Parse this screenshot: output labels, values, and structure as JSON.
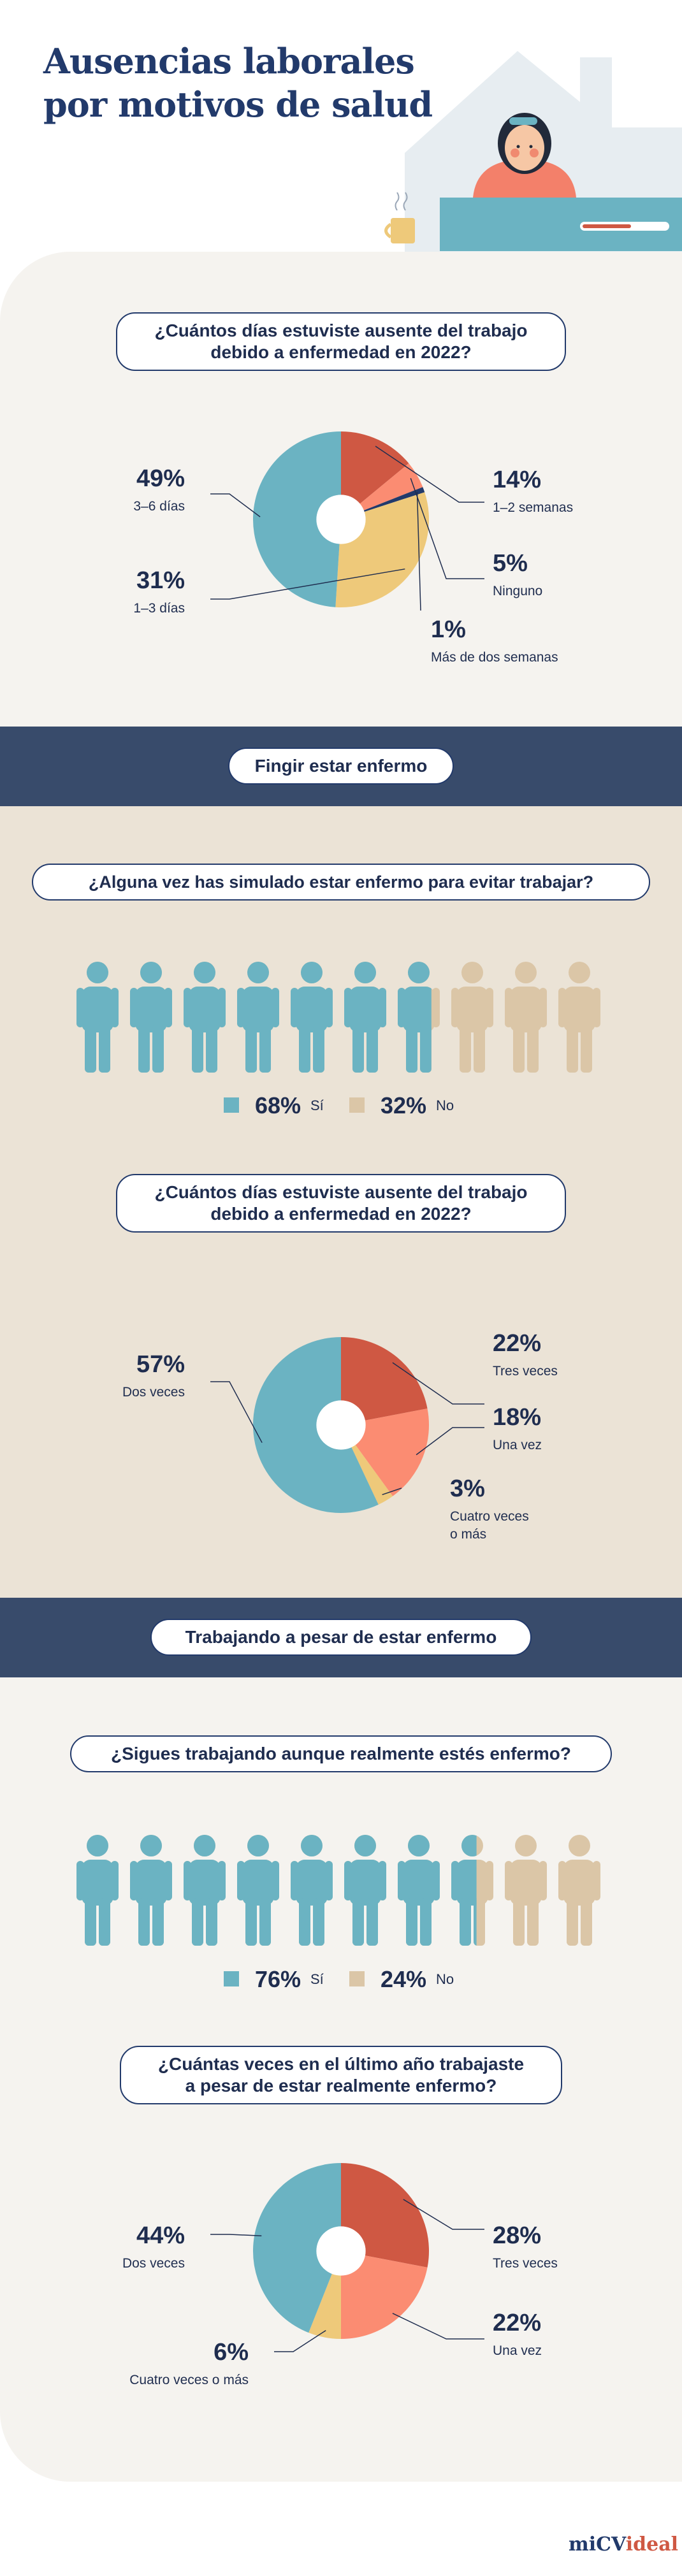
{
  "title_line1": "Ausencias laborales",
  "title_line2": "por motivos de salud",
  "colors": {
    "blue": "#6bb3c2",
    "red": "#cf5843",
    "salmon": "#fb8c72",
    "yellow": "#eec97a",
    "navy": "#223a6b",
    "beige_person": "#dbc6a7"
  },
  "q1": {
    "question_line1": "¿Cuántos días estuviste ausente del trabajo",
    "question_line2": "debido a enfermedad en 2022?"
  },
  "band1": "Fingir estar enfermo",
  "q2": {
    "question": "¿Alguna vez has simulado estar enfermo para evitar trabajar?",
    "yes_value": "68%",
    "yes_label": "Sí",
    "no_value": "32%",
    "no_label": "No",
    "icons": {
      "total": 10,
      "filled": 6.8
    }
  },
  "q3": {
    "question_line1": "¿Cuántos días estuviste ausente del trabajo",
    "question_line2": "debido a enfermedad en 2022?"
  },
  "band2": "Trabajando a pesar de estar enfermo",
  "q4": {
    "question": "¿Sigues trabajando aunque realmente estés enfermo?",
    "yes_value": "76%",
    "yes_label": "Sí",
    "no_value": "24%",
    "no_label": "No",
    "icons": {
      "total": 10,
      "filled": 7.6
    }
  },
  "q5": {
    "question_line1": "¿Cuántas veces en el último año trabajaste",
    "question_line2": "a pesar de estar realmente enfermo?"
  },
  "brand": {
    "part1": "mi",
    "part2": "CV",
    "part3": "ideal"
  },
  "chart_data": [
    {
      "type": "pie",
      "slices": [
        {
          "label": "1–2 semanas",
          "value": 14,
          "pct_text": "14%",
          "color": "red"
        },
        {
          "label": "Ninguno",
          "value": 5,
          "pct_text": "5%",
          "color": "salmon"
        },
        {
          "label": "Más de dos semanas",
          "value": 1,
          "pct_text": "1%",
          "color": "navy"
        },
        {
          "label": "1–3 días",
          "value": 31,
          "pct_text": "31%",
          "color": "yellow"
        },
        {
          "label": "3–6 días",
          "value": 49,
          "pct_text": "49%",
          "color": "blue"
        }
      ]
    },
    {
      "type": "pie",
      "slices": [
        {
          "label": "Tres veces",
          "value": 22,
          "pct_text": "22%",
          "color": "red"
        },
        {
          "label": "Una vez",
          "value": 18,
          "pct_text": "18%",
          "color": "salmon"
        },
        {
          "label": "Cuatro veces o más",
          "label_line1": "Cuatro veces",
          "label_line2": "o más",
          "value": 3,
          "pct_text": "3%",
          "color": "yellow"
        },
        {
          "label": "Dos veces",
          "value": 57,
          "pct_text": "57%",
          "color": "blue"
        }
      ]
    },
    {
      "type": "pie",
      "slices": [
        {
          "label": "Tres veces",
          "value": 28,
          "pct_text": "28%",
          "color": "red"
        },
        {
          "label": "Una vez",
          "value": 22,
          "pct_text": "22%",
          "color": "salmon"
        },
        {
          "label": "Cuatro veces o más",
          "value": 6,
          "pct_text": "6%",
          "color": "yellow"
        },
        {
          "label": "Dos veces",
          "value": 44,
          "pct_text": "44%",
          "color": "blue"
        }
      ]
    }
  ]
}
